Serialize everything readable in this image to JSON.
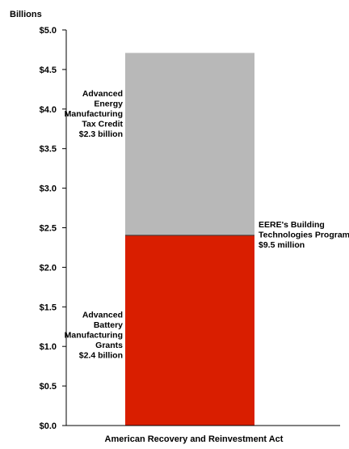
{
  "chart_data": {
    "type": "bar",
    "stacked": true,
    "ylabel": "Billions",
    "xlabel": "American Recovery and Reinvestment Act",
    "ylim": [
      0,
      5.0
    ],
    "yticks": [
      "$0.0",
      "$0.5",
      "$1.0",
      "$1.5",
      "$2.0",
      "$2.5",
      "$3.0",
      "$3.5",
      "$4.0",
      "$4.5",
      "$5.0"
    ],
    "categories": [
      "American Recovery and Reinvestment Act"
    ],
    "grid": false,
    "series": [
      {
        "name": "Advanced Battery Manufacturing Grants",
        "values": [
          2.4
        ],
        "color": "#d91e00",
        "label_lines": [
          "Advanced",
          "Battery",
          "Manufacturing",
          "Grants",
          "$2.4 billion"
        ]
      },
      {
        "name": "EERE's Building Technologies Program",
        "values": [
          0.0095
        ],
        "color": "#111111",
        "label_lines": [
          "EERE's Building",
          "Technologies Program",
          "$9.5 million"
        ]
      },
      {
        "name": "Advanced Energy Manufacturing Tax Credit",
        "values": [
          2.3
        ],
        "color": "#b8b8b8",
        "label_lines": [
          "Advanced",
          "Energy",
          "Manufacturing",
          "Tax Credit",
          "$2.3 billion"
        ]
      }
    ]
  }
}
